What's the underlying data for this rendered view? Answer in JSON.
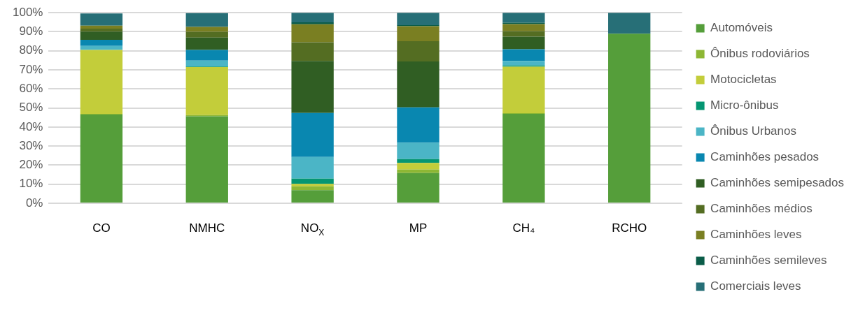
{
  "chart_data": {
    "type": "bar",
    "stacked": true,
    "categories": [
      "CO",
      "NMHC",
      "NO$_{X}$",
      "MP",
      "CH₄",
      "RCHO"
    ],
    "series": [
      {
        "name": "Automóveis",
        "color": "#559e3a",
        "values": [
          46.6,
          45.6,
          6.9,
          15.9,
          46.9,
          89.0
        ]
      },
      {
        "name": "Ônibus rodoviários",
        "color": "#8db734",
        "values": [
          0.3,
          0.7,
          2.0,
          1.8,
          0.4,
          0
        ]
      },
      {
        "name": "Motocicletas",
        "color": "#c3cd3a",
        "values": [
          33.6,
          25.2,
          1.3,
          3.5,
          24.4,
          0
        ]
      },
      {
        "name": "Micro-ônibus",
        "color": "#059672",
        "values": [
          null,
          0.3,
          2.7,
          2.0,
          0.6,
          0
        ]
      },
      {
        "name": "Ônibus Urbanos",
        "color": "#4bb5c6",
        "values": [
          2.1,
          3.1,
          11.4,
          8.6,
          2.4,
          0
        ]
      },
      {
        "name": "Caminhões pesados",
        "color": "#0987b0",
        "values": [
          3.2,
          5.6,
          23.1,
          18.5,
          6.1,
          0
        ]
      },
      {
        "name": "Caminhões semipesados",
        "color": "#305e23",
        "values": [
          4.3,
          6.5,
          27.3,
          24.1,
          6.6,
          0
        ]
      },
      {
        "name": "Caminhões médios",
        "color": "#546d22",
        "values": [
          1.5,
          3.0,
          9.8,
          10.6,
          3.0,
          0
        ]
      },
      {
        "name": "Caminhões leves",
        "color": "#7a7f22",
        "values": [
          1.6,
          2.6,
          9.4,
          7.9,
          3.6,
          0
        ]
      },
      {
        "name": "Caminhões semileves",
        "color": "#0a5c48",
        "values": [
          null,
          null,
          1.0,
          0.6,
          0.8,
          0
        ]
      },
      {
        "name": "Comerciais leves",
        "color": "#276f77",
        "values": [
          6.4,
          7.2,
          5.1,
          6.5,
          5.2,
          11.0
        ]
      }
    ],
    "ylim": [
      0,
      100
    ],
    "yticks": [
      {
        "value": 0,
        "label": "0%"
      },
      {
        "value": 10,
        "label": "10%"
      },
      {
        "value": 20,
        "label": "20%"
      },
      {
        "value": 30,
        "label": "30%"
      },
      {
        "value": 40,
        "label": "40%"
      },
      {
        "value": 50,
        "label": "50%"
      },
      {
        "value": 60,
        "label": "60%"
      },
      {
        "value": 70,
        "label": "70%"
      },
      {
        "value": 80,
        "label": "80%"
      },
      {
        "value": 90,
        "label": "90%"
      },
      {
        "value": 100,
        "label": "100%"
      }
    ],
    "grid": "y",
    "legend": "right"
  }
}
